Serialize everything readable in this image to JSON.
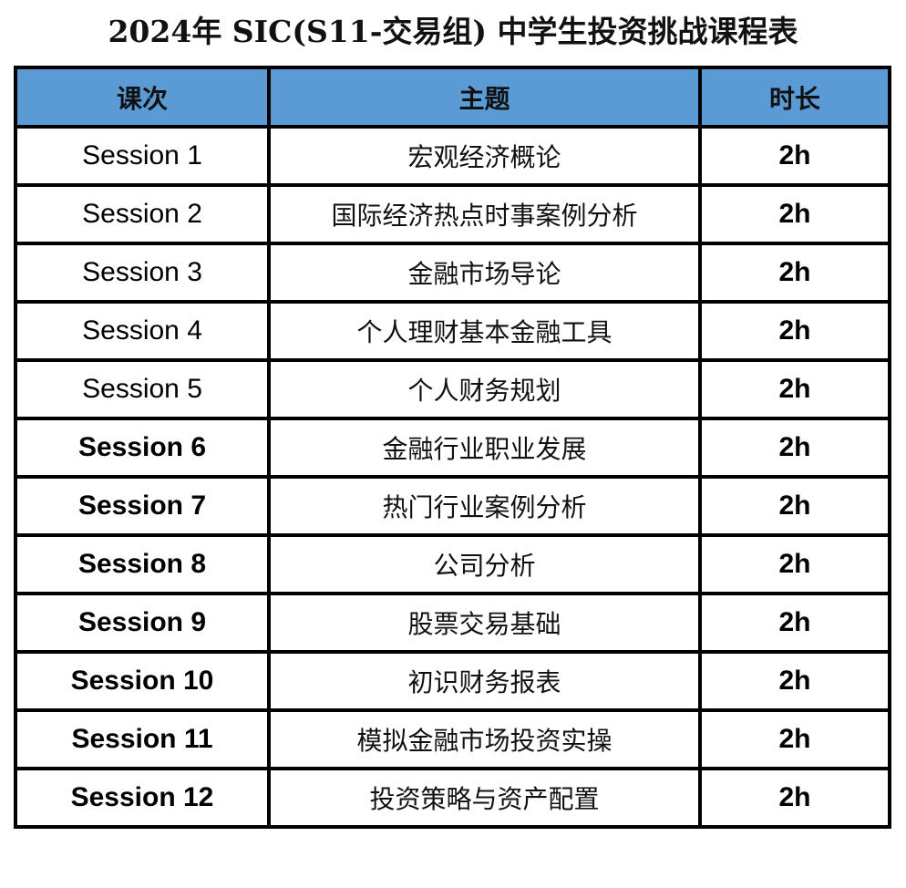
{
  "title": "2024年 SIC(S11-交易组) 中学生投资挑战课程表",
  "header_color": "#5b9bd5",
  "columns": [
    "课次",
    "主题",
    "时长"
  ],
  "rows": [
    {
      "session": "Session 1",
      "topic": "宏观经济概论",
      "duration": "2h",
      "bold": false
    },
    {
      "session": "Session 2",
      "topic": "国际经济热点时事案例分析",
      "duration": "2h",
      "bold": false
    },
    {
      "session": "Session 3",
      "topic": "金融市场导论",
      "duration": "2h",
      "bold": false
    },
    {
      "session": "Session 4",
      "topic": "个人理财基本金融工具",
      "duration": "2h",
      "bold": false
    },
    {
      "session": "Session 5",
      "topic": "个人财务规划",
      "duration": "2h",
      "bold": false
    },
    {
      "session": "Session 6",
      "topic": "金融行业职业发展",
      "duration": "2h",
      "bold": true
    },
    {
      "session": "Session 7",
      "topic": "热门行业案例分析",
      "duration": "2h",
      "bold": true
    },
    {
      "session": "Session 8",
      "topic": "公司分析",
      "duration": "2h",
      "bold": true
    },
    {
      "session": "Session 9",
      "topic": "股票交易基础",
      "duration": "2h",
      "bold": true
    },
    {
      "session": "Session 10",
      "topic": "初识财务报表",
      "duration": "2h",
      "bold": true
    },
    {
      "session": "Session 11",
      "topic": "模拟金融市场投资实操",
      "duration": "2h",
      "bold": true
    },
    {
      "session": "Session 12",
      "topic": "投资策略与资产配置",
      "duration": "2h",
      "bold": true
    }
  ]
}
